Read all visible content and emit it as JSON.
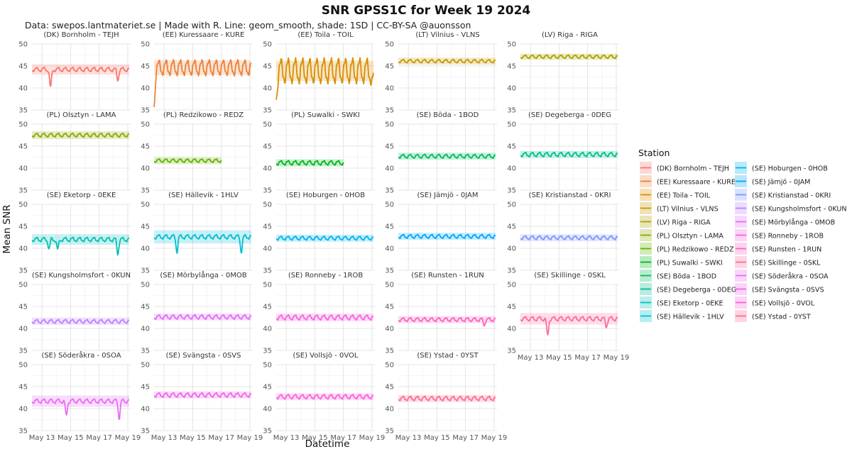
{
  "chart_data": {
    "type": "line",
    "title": "SNR GPSS1C for Week 19 2024",
    "subtitle": "Data: swepos.lantmateriet.se | Made with R. Line: geom_smooth, shade: 1SD | CC-BY-SA @auonsson",
    "xlabel": "Datetime",
    "ylabel": "Mean SNR",
    "ylim": [
      35,
      50
    ],
    "yticks": [
      35,
      40,
      45,
      50
    ],
    "xlim": [
      12.3,
      19.2
    ],
    "xticks": [
      {
        "value": 13,
        "label": "May 13"
      },
      {
        "value": 15,
        "label": "May 15"
      },
      {
        "value": 17,
        "label": "May 17"
      },
      {
        "value": 19,
        "label": "May 19"
      }
    ],
    "legend_title": "Station",
    "series": [
      {
        "name": "(DK) Bornholm - TEJH",
        "color": "#F8766D",
        "mean": 44.2,
        "sd": 1.2,
        "start": 12.3,
        "end": 19.1,
        "amp": 0.45,
        "dips": [
          [
            13.6,
            4.3
          ],
          [
            18.3,
            2.4
          ]
        ]
      },
      {
        "name": "(EE) Kuressaare - KURE",
        "color": "#EC8239",
        "mean": 44.6,
        "sd": 1.7,
        "start": 12.3,
        "end": 19.1,
        "amp": 1.6,
        "dips": [
          [
            12.3,
            8.0
          ]
        ]
      },
      {
        "name": "(EE) Toila - TOIL",
        "color": "#DB8E00",
        "mean": 43.9,
        "sd": 2.3,
        "start": 12.3,
        "end": 19.1,
        "amp": 2.6,
        "dips": [
          [
            12.3,
            5.0
          ],
          [
            19.05,
            3.0
          ]
        ]
      },
      {
        "name": "(LT) Vilnius - VLNS",
        "color": "#C79800",
        "mean": 46.1,
        "sd": 0.8,
        "start": 12.3,
        "end": 19.1,
        "amp": 0.35,
        "dips": []
      },
      {
        "name": "(LV) Riga - RIGA",
        "color": "#AEA200",
        "mean": 47.1,
        "sd": 0.7,
        "start": 12.3,
        "end": 19.1,
        "amp": 0.35,
        "dips": []
      },
      {
        "name": "(PL) Olsztyn - LAMA",
        "color": "#8FAA00",
        "mean": 47.5,
        "sd": 0.9,
        "start": 12.3,
        "end": 19.1,
        "amp": 0.4,
        "dips": []
      },
      {
        "name": "(PL) Redzikowo - REDZ",
        "color": "#64B200",
        "mean": 41.7,
        "sd": 0.8,
        "start": 12.3,
        "end": 17.0,
        "amp": 0.35,
        "dips": []
      },
      {
        "name": "(PL) Suwalki - SWKI",
        "color": "#00B81B",
        "mean": 41.2,
        "sd": 0.8,
        "start": 12.3,
        "end": 17.0,
        "amp": 0.45,
        "dips": []
      },
      {
        "name": "(SE) Böda - 1BOD",
        "color": "#00BD5C",
        "mean": 42.7,
        "sd": 0.8,
        "start": 12.3,
        "end": 19.1,
        "amp": 0.4,
        "dips": []
      },
      {
        "name": "(SE) Degeberga - 0DEG",
        "color": "#00C08E",
        "mean": 43.1,
        "sd": 0.8,
        "start": 12.3,
        "end": 19.1,
        "amp": 0.45,
        "dips": []
      },
      {
        "name": "(SE) Eketorp - 0EKE",
        "color": "#00C1B7",
        "mean": 42.0,
        "sd": 1.2,
        "start": 12.3,
        "end": 19.1,
        "amp": 0.45,
        "dips": [
          [
            13.5,
            2.2
          ],
          [
            14.1,
            2.5
          ],
          [
            18.3,
            3.3
          ]
        ]
      },
      {
        "name": "(SE) Hällevik - 1HLV",
        "color": "#00BDD4",
        "mean": 42.6,
        "sd": 1.5,
        "start": 12.3,
        "end": 19.1,
        "amp": 0.45,
        "dips": [
          [
            13.9,
            3.3
          ],
          [
            18.4,
            3.3
          ]
        ]
      },
      {
        "name": "(SE) Hoburgen - 0HOB",
        "color": "#00B5EE",
        "mean": 42.3,
        "sd": 0.8,
        "start": 12.3,
        "end": 19.1,
        "amp": 0.4,
        "dips": []
      },
      {
        "name": "(SE) Jämjö - 0JAM",
        "color": "#00A7FF",
        "mean": 42.7,
        "sd": 0.8,
        "start": 12.3,
        "end": 19.1,
        "amp": 0.4,
        "dips": []
      },
      {
        "name": "(SE) Kristianstad - 0KRI",
        "color": "#7F96FF",
        "mean": 42.4,
        "sd": 0.8,
        "start": 12.3,
        "end": 19.1,
        "amp": 0.4,
        "dips": []
      },
      {
        "name": "(SE) Kungsholmsfort - 0KUN",
        "color": "#BC81FF",
        "mean": 41.6,
        "sd": 0.8,
        "start": 12.3,
        "end": 19.1,
        "amp": 0.4,
        "dips": []
      },
      {
        "name": "(SE) Mörbylånga - 0MOB",
        "color": "#E26EF7",
        "mean": 42.6,
        "sd": 0.8,
        "start": 12.3,
        "end": 19.1,
        "amp": 0.45,
        "dips": []
      },
      {
        "name": "(SE) Ronneby - 1ROB",
        "color": "#F863DF",
        "mean": 42.5,
        "sd": 0.9,
        "start": 12.3,
        "end": 19.1,
        "amp": 0.5,
        "dips": []
      },
      {
        "name": "(SE) Runsten - 1RUN",
        "color": "#FF62BF",
        "mean": 42.0,
        "sd": 0.8,
        "start": 12.3,
        "end": 19.1,
        "amp": 0.4,
        "dips": [
          [
            18.3,
            1.2
          ]
        ]
      },
      {
        "name": "(SE) Skillinge - 0SKL",
        "color": "#FF6A9A",
        "mean": 42.2,
        "sd": 1.3,
        "start": 12.3,
        "end": 19.1,
        "amp": 0.45,
        "dips": [
          [
            14.2,
            4.0
          ],
          [
            18.3,
            1.8
          ]
        ]
      },
      {
        "name": "(SE) Söderåkra - 0SOA",
        "color": "#E76BF3",
        "mean": 41.7,
        "sd": 1.3,
        "start": 12.3,
        "end": 19.1,
        "amp": 0.45,
        "dips": [
          [
            14.7,
            3.5
          ],
          [
            18.4,
            3.8
          ]
        ]
      },
      {
        "name": "(SE) Svängsta - 0SVS",
        "color": "#F066EA",
        "mean": 43.1,
        "sd": 0.8,
        "start": 12.3,
        "end": 19.1,
        "amp": 0.45,
        "dips": []
      },
      {
        "name": "(SE) Vollsjö - 0VOL",
        "color": "#FA62DB",
        "mean": 42.7,
        "sd": 0.8,
        "start": 12.3,
        "end": 19.1,
        "amp": 0.45,
        "dips": []
      },
      {
        "name": "(SE) Ystad - 0YST",
        "color": "#FF6C91",
        "mean": 42.3,
        "sd": 0.8,
        "start": 12.3,
        "end": 19.1,
        "amp": 0.45,
        "dips": []
      }
    ]
  }
}
